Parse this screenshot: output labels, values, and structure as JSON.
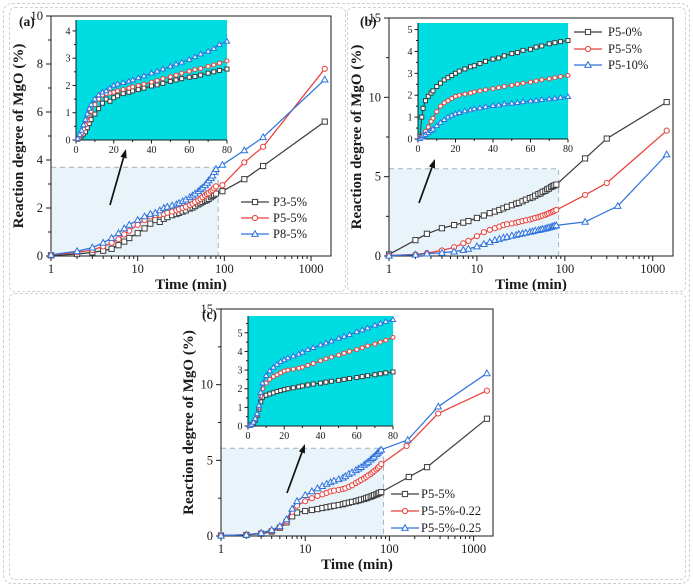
{
  "colors": {
    "black_series": "#3d3d3d",
    "red_series": "#e8423c",
    "blue_series": "#2e73dd",
    "inset_background": "#00dde2",
    "zoom_region_fill": "#e9f3fa",
    "zoom_region_border": "#a8b0b8",
    "frame": "#1a1a1a"
  },
  "chart_data": [
    {
      "id": "a",
      "panel_label": "(a)",
      "type": "line",
      "xlabel": "Time (min)",
      "ylabel": "Reaction degree of MgO (%)",
      "x_scale": "log",
      "xlim": [
        1,
        1700
      ],
      "ylim": [
        0,
        10
      ],
      "xticks": [
        1,
        10,
        100,
        1000
      ],
      "yticks": [
        0,
        2,
        4,
        6,
        8,
        10
      ],
      "legend_position": "inside-right-middle",
      "zoom_region": {
        "x": [
          1,
          85
        ],
        "y": [
          0,
          3.7
        ]
      },
      "inset": {
        "xlim": [
          0,
          80
        ],
        "ylim": [
          0,
          4.4
        ],
        "xticks": [
          0,
          20,
          40,
          60,
          80
        ],
        "yticks": [
          0,
          1,
          2,
          3,
          4
        ]
      },
      "series": [
        {
          "name": "P3-5%",
          "color": "#3d3d3d",
          "marker": "square",
          "x": [
            1,
            2,
            3,
            4,
            5,
            6,
            7,
            8,
            10,
            12,
            14,
            16,
            18,
            20,
            22,
            25,
            28,
            30,
            33,
            36,
            40,
            43,
            46,
            50,
            53,
            56,
            60,
            63,
            66,
            70,
            73,
            76,
            80,
            95,
            170,
            280,
            1440
          ],
          "y": [
            0.03,
            0.08,
            0.15,
            0.22,
            0.3,
            0.45,
            0.6,
            0.75,
            0.95,
            1.15,
            1.35,
            1.5,
            1.42,
            1.55,
            1.62,
            1.7,
            1.75,
            1.8,
            1.85,
            1.9,
            1.98,
            2.02,
            2.08,
            2.15,
            2.2,
            2.25,
            2.3,
            2.33,
            2.38,
            2.45,
            2.5,
            2.55,
            2.6,
            2.7,
            3.2,
            3.75,
            5.6
          ]
        },
        {
          "name": "P5-5%",
          "color": "#e8423c",
          "marker": "circle",
          "x": [
            1,
            2,
            3,
            4,
            5,
            6,
            7,
            8,
            10,
            12,
            14,
            16,
            18,
            20,
            22,
            25,
            28,
            30,
            33,
            36,
            40,
            43,
            46,
            50,
            53,
            56,
            60,
            63,
            66,
            70,
            73,
            76,
            80,
            95,
            170,
            280,
            1440
          ],
          "y": [
            0.04,
            0.15,
            0.25,
            0.4,
            0.55,
            0.7,
            0.9,
            1.05,
            1.3,
            1.5,
            1.65,
            1.7,
            1.72,
            1.75,
            1.8,
            1.85,
            1.9,
            1.95,
            2.0,
            2.05,
            2.12,
            2.18,
            2.25,
            2.32,
            2.38,
            2.45,
            2.52,
            2.58,
            2.62,
            2.7,
            2.75,
            2.82,
            2.9,
            2.95,
            3.9,
            4.55,
            7.8
          ]
        },
        {
          "name": "P8-5%",
          "color": "#2e73dd",
          "marker": "triangle",
          "x": [
            1,
            2,
            3,
            4,
            5,
            6,
            7,
            8,
            10,
            12,
            14,
            16,
            18,
            20,
            22,
            25,
            28,
            30,
            33,
            36,
            40,
            43,
            46,
            50,
            53,
            56,
            60,
            63,
            66,
            70,
            73,
            76,
            80,
            95,
            170,
            280,
            1440
          ],
          "y": [
            0.05,
            0.2,
            0.35,
            0.55,
            0.75,
            0.95,
            1.15,
            1.3,
            1.5,
            1.65,
            1.75,
            1.8,
            1.9,
            2.0,
            2.05,
            2.1,
            2.15,
            2.2,
            2.28,
            2.35,
            2.45,
            2.52,
            2.6,
            2.7,
            2.78,
            2.85,
            2.95,
            3.05,
            3.15,
            3.25,
            3.35,
            3.5,
            3.62,
            3.8,
            4.4,
            4.95,
            7.35
          ]
        }
      ]
    },
    {
      "id": "b",
      "panel_label": "(b)",
      "type": "line",
      "xlabel": "Time (min)",
      "ylabel": "Reaction degree of MgO (%)",
      "x_scale": "log",
      "xlim": [
        1,
        1700
      ],
      "ylim": [
        0,
        15
      ],
      "xticks": [
        1,
        10,
        100,
        1000
      ],
      "yticks": [
        0,
        5,
        10,
        15
      ],
      "legend_position": "inside-top-right",
      "zoom_region": {
        "x": [
          1,
          85
        ],
        "y": [
          0,
          5.5
        ]
      },
      "inset": {
        "xlim": [
          0,
          80
        ],
        "ylim": [
          0,
          5.3
        ],
        "xticks": [
          0,
          20,
          40,
          60,
          80
        ],
        "yticks": [
          0,
          1,
          2,
          3,
          4,
          5
        ]
      },
      "series": [
        {
          "name": "P5-0%",
          "color": "#3d3d3d",
          "marker": "square",
          "x": [
            1,
            2,
            2.7,
            4,
            5.5,
            7,
            8,
            10,
            12,
            14,
            16,
            18,
            20,
            22,
            25,
            28,
            30,
            33,
            36,
            40,
            43,
            46,
            50,
            53,
            56,
            60,
            63,
            66,
            70,
            73,
            76,
            80,
            170,
            300,
            1440
          ],
          "y": [
            0.1,
            1.0,
            1.4,
            1.75,
            1.95,
            2.1,
            2.2,
            2.4,
            2.55,
            2.7,
            2.8,
            2.9,
            3.0,
            3.1,
            3.2,
            3.3,
            3.35,
            3.45,
            3.55,
            3.65,
            3.7,
            3.8,
            3.9,
            3.95,
            4.05,
            4.1,
            4.2,
            4.25,
            4.35,
            4.4,
            4.45,
            4.5,
            6.15,
            7.4,
            9.7
          ]
        },
        {
          "name": "P5-5%",
          "color": "#e8423c",
          "marker": "circle",
          "x": [
            1,
            2,
            2.7,
            4,
            5.5,
            7,
            8,
            10,
            12,
            14,
            16,
            18,
            20,
            22,
            25,
            28,
            30,
            33,
            36,
            40,
            43,
            46,
            50,
            53,
            56,
            60,
            63,
            66,
            70,
            73,
            76,
            80,
            170,
            300,
            1440
          ],
          "y": [
            0.03,
            0.1,
            0.18,
            0.35,
            0.55,
            0.8,
            0.95,
            1.25,
            1.5,
            1.65,
            1.75,
            1.85,
            1.95,
            2.0,
            2.05,
            2.1,
            2.15,
            2.2,
            2.25,
            2.3,
            2.35,
            2.4,
            2.45,
            2.5,
            2.55,
            2.6,
            2.65,
            2.7,
            2.75,
            2.8,
            2.85,
            2.9,
            3.85,
            4.6,
            7.9
          ]
        },
        {
          "name": "P5-10%",
          "color": "#2e73dd",
          "marker": "triangle",
          "x": [
            1,
            2,
            2.7,
            4,
            5.5,
            7,
            8,
            10,
            12,
            14,
            16,
            18,
            20,
            22,
            25,
            28,
            30,
            33,
            36,
            40,
            43,
            46,
            50,
            53,
            56,
            60,
            63,
            66,
            70,
            73,
            76,
            80,
            170,
            400,
            1440
          ],
          "y": [
            0.02,
            0.08,
            0.15,
            0.2,
            0.28,
            0.38,
            0.45,
            0.6,
            0.75,
            0.88,
            1.0,
            1.08,
            1.15,
            1.2,
            1.28,
            1.33,
            1.38,
            1.42,
            1.47,
            1.52,
            1.55,
            1.6,
            1.63,
            1.66,
            1.7,
            1.73,
            1.76,
            1.8,
            1.83,
            1.86,
            1.9,
            1.93,
            2.15,
            3.15,
            6.4
          ]
        }
      ]
    },
    {
      "id": "c",
      "panel_label": "(c)",
      "type": "line",
      "xlabel": "Time (min)",
      "ylabel": "Reaction degree of MgO (%)",
      "x_scale": "log",
      "xlim": [
        1,
        1700
      ],
      "ylim": [
        0,
        15
      ],
      "xticks": [
        1,
        10,
        100,
        1000
      ],
      "yticks": [
        0,
        5,
        10,
        15
      ],
      "legend_position": "inside-bottom-right",
      "zoom_region": {
        "x": [
          1,
          85
        ],
        "y": [
          0,
          5.8
        ]
      },
      "inset": {
        "xlim": [
          0,
          80
        ],
        "ylim": [
          0,
          5.9
        ],
        "xticks": [
          0,
          20,
          40,
          60,
          80
        ],
        "yticks": [
          0,
          1,
          2,
          3,
          4,
          5
        ]
      },
      "series": [
        {
          "name": "P5-5%",
          "color": "#3d3d3d",
          "marker": "square",
          "x": [
            1,
            2,
            3,
            4,
            5,
            6,
            7,
            8,
            10,
            12,
            14,
            16,
            18,
            20,
            22,
            25,
            28,
            30,
            33,
            36,
            40,
            43,
            46,
            50,
            53,
            56,
            60,
            63,
            66,
            70,
            73,
            76,
            80,
            170,
            280,
            1440
          ],
          "y": [
            0.03,
            0.07,
            0.15,
            0.3,
            0.55,
            0.9,
            1.3,
            1.55,
            1.65,
            1.72,
            1.78,
            1.85,
            1.9,
            1.95,
            2.0,
            2.05,
            2.1,
            2.15,
            2.2,
            2.25,
            2.3,
            2.35,
            2.4,
            2.45,
            2.5,
            2.55,
            2.6,
            2.65,
            2.7,
            2.75,
            2.8,
            2.85,
            2.9,
            3.9,
            4.55,
            7.75
          ]
        },
        {
          "name": "P5-5%-0.22",
          "color": "#e8423c",
          "marker": "circle",
          "x": [
            1,
            2,
            3,
            4,
            5,
            6,
            7,
            8,
            10,
            12,
            14,
            16,
            18,
            20,
            22,
            25,
            28,
            30,
            33,
            36,
            40,
            43,
            46,
            50,
            53,
            56,
            60,
            63,
            66,
            70,
            73,
            76,
            80,
            160,
            380,
            1440
          ],
          "y": [
            0.03,
            0.08,
            0.18,
            0.35,
            0.6,
            1.0,
            1.6,
            2.0,
            2.3,
            2.5,
            2.65,
            2.75,
            2.85,
            2.95,
            3.0,
            3.05,
            3.1,
            3.15,
            3.25,
            3.35,
            3.5,
            3.6,
            3.7,
            3.8,
            3.9,
            4.0,
            4.1,
            4.2,
            4.3,
            4.4,
            4.5,
            4.6,
            4.75,
            5.95,
            8.1,
            9.6
          ]
        },
        {
          "name": "P5-5%-0.25",
          "color": "#2e73dd",
          "marker": "triangle",
          "x": [
            1,
            2,
            3,
            4,
            5,
            6,
            7,
            8,
            10,
            12,
            14,
            16,
            18,
            20,
            22,
            25,
            28,
            30,
            33,
            36,
            40,
            43,
            46,
            50,
            53,
            56,
            60,
            63,
            66,
            70,
            73,
            76,
            80,
            165,
            380,
            1440
          ],
          "y": [
            0.03,
            0.08,
            0.2,
            0.4,
            0.65,
            1.1,
            1.8,
            2.3,
            2.7,
            2.95,
            3.15,
            3.3,
            3.45,
            3.55,
            3.65,
            3.75,
            3.85,
            3.95,
            4.1,
            4.2,
            4.35,
            4.45,
            4.55,
            4.7,
            4.8,
            4.9,
            5.05,
            5.15,
            5.25,
            5.4,
            5.5,
            5.6,
            5.7,
            6.35,
            8.55,
            10.75
          ]
        }
      ]
    }
  ]
}
